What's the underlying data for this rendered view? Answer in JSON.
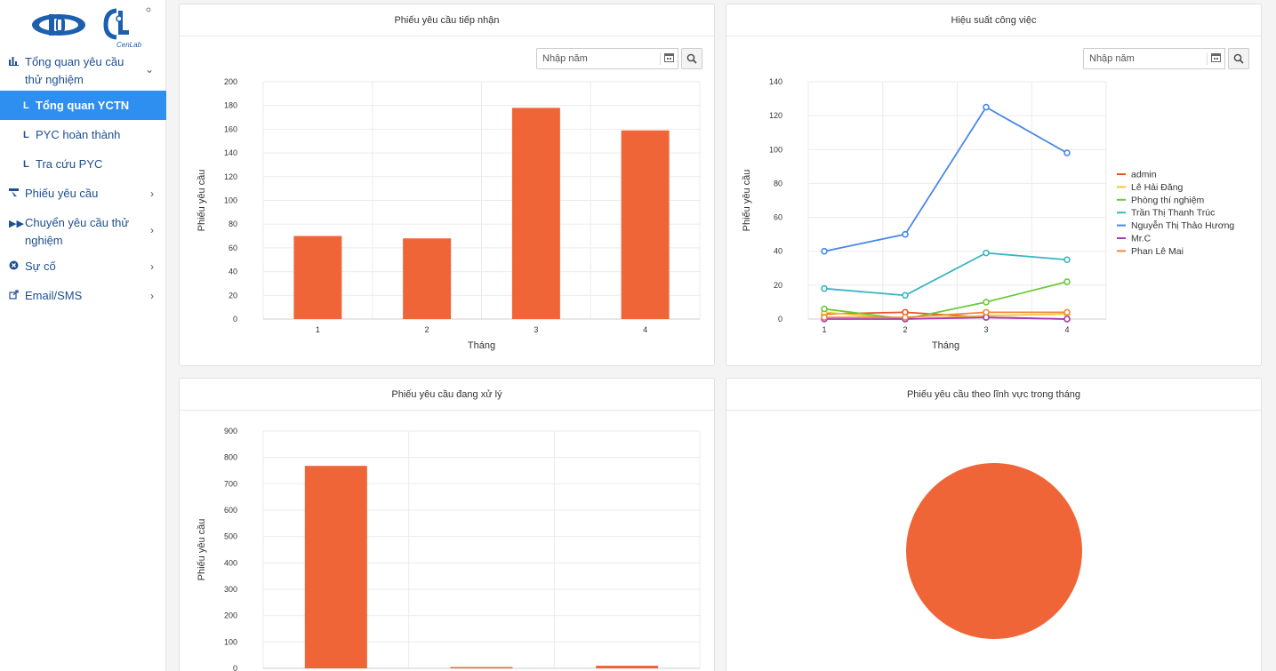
{
  "brand": {
    "logo_text": "CenLab"
  },
  "sidebar": {
    "items": [
      {
        "label": "Tổng quan yêu cầu thử nghiệm",
        "icon": "bar-chart-icon"
      },
      {
        "label": "Tổng quan YCTN",
        "active": true
      },
      {
        "label": "PYC hoàn thành"
      },
      {
        "label": "Tra cứu PYC"
      },
      {
        "label": "Phiếu yêu cầu",
        "icon": "pointer-icon"
      },
      {
        "label": "Chuyển yêu cầu thử nghiệm",
        "icon": "forward-icon"
      },
      {
        "label": "Sự cố",
        "icon": "error-circle-icon"
      },
      {
        "label": "Email/SMS",
        "icon": "external-link-icon"
      }
    ]
  },
  "panels": {
    "received": {
      "title": "Phiếu yêu cầu tiếp nhận",
      "year_placeholder": "Nhập năm"
    },
    "performance": {
      "title": "Hiệu suất công việc",
      "year_placeholder": "Nhập năm"
    },
    "processing": {
      "title": "Phiếu yêu cầu đang xử lý"
    },
    "by_field": {
      "title": "Phiếu yêu cầu theo lĩnh vực trong tháng"
    }
  },
  "chart_data": [
    {
      "type": "bar",
      "title": "Phiếu yêu cầu tiếp nhận",
      "xlabel": "Tháng",
      "ylabel": "Phiếu yêu cầu",
      "categories": [
        "1",
        "2",
        "3",
        "4"
      ],
      "values": [
        70,
        68,
        178,
        159
      ],
      "ylim": [
        0,
        200
      ],
      "yticks": [
        "0",
        "20",
        "40",
        "60",
        "80",
        "100",
        "120",
        "140",
        "160",
        "180",
        "200"
      ],
      "color": "#f06537",
      "grid": true
    },
    {
      "type": "line",
      "title": "Hiệu suất công việc",
      "xlabel": "Tháng",
      "ylabel": "Phiếu yêu cầu",
      "categories": [
        "1",
        "2",
        "3",
        "4"
      ],
      "ylim": [
        0,
        140
      ],
      "yticks": [
        "0",
        "20",
        "40",
        "60",
        "80",
        "100",
        "120",
        "140"
      ],
      "legend": "right",
      "grid": true,
      "series": [
        {
          "name": "admin",
          "color": "#e8532a",
          "values": [
            3,
            4,
            1,
            0
          ]
        },
        {
          "name": "Lê Hải Đăng",
          "color": "#f7c331",
          "values": [
            4,
            0,
            2,
            3
          ]
        },
        {
          "name": "Phòng thí nghiệm",
          "color": "#6cc93a",
          "values": [
            6,
            0,
            10,
            22
          ]
        },
        {
          "name": "Trần Thị Thanh Trúc",
          "color": "#3ab5c4",
          "values": [
            18,
            14,
            39,
            35
          ]
        },
        {
          "name": "Nguyễn Thị Thảo Hương",
          "color": "#4a88ea",
          "values": [
            40,
            50,
            125,
            98
          ]
        },
        {
          "name": "Mr.C",
          "color": "#a53fb5",
          "values": [
            0,
            0,
            1,
            0
          ]
        },
        {
          "name": "Phan Lê Mai",
          "color": "#f0883a",
          "values": [
            1,
            1,
            4,
            4
          ]
        }
      ]
    },
    {
      "type": "bar",
      "title": "Phiếu yêu cầu đang xử lý",
      "ylabel": "Phiếu yêu cầu",
      "categories": [
        "",
        "",
        ""
      ],
      "values": [
        768,
        5,
        10
      ],
      "ylim": [
        0,
        900
      ],
      "yticks": [
        "0",
        "100",
        "200",
        "300",
        "400",
        "500",
        "600",
        "700",
        "800",
        "900"
      ],
      "color": "#f06537",
      "grid": true
    },
    {
      "type": "pie",
      "title": "Phiếu yêu cầu theo lĩnh vực trong tháng",
      "values": [
        100
      ],
      "color": "#f06537"
    }
  ]
}
